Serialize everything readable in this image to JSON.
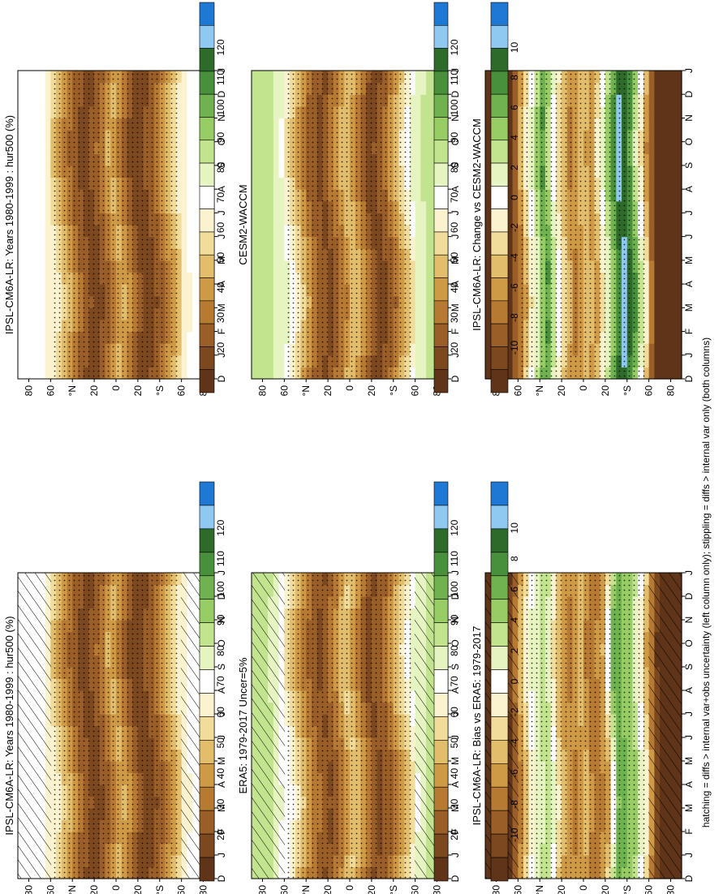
{
  "footer_note": "hatching = diffs > internal var+obs uncertainty (left column only); stippling = diffs > internal var only (both columns)",
  "colors": {
    "abs_scale": [
      "#1f78d4",
      "#8fc8f0",
      "#2e6b2b",
      "#49903d",
      "#6fb24f",
      "#98cc65",
      "#c3e48f",
      "#e6f4c2",
      "#ffffff",
      "#fbf3cf",
      "#f1dc9c",
      "#e2bd6c",
      "#cf9a45",
      "#b77a33",
      "#9a5f28",
      "#7c4820",
      "#5f3418"
    ],
    "diff_scale": [
      "#1f78d4",
      "#8fc8f0",
      "#2e6b2b",
      "#49903d",
      "#6fb24f",
      "#98cc65",
      "#c3e48f",
      "#e6f4c2",
      "#ffffff",
      "#fbf3cf",
      "#f1dc9c",
      "#e2bd6c",
      "#cf9a45",
      "#b77a33",
      "#9a5f28",
      "#7c4820",
      "#5f3418"
    ]
  },
  "chart_data": [
    {
      "id": "ipsl-bottom",
      "type": "heatmap",
      "title": "IPSL-CM6A-LR: Years 1980-1999 : hur500 (%)",
      "x_ticks": [
        "D",
        "J",
        "F",
        "M",
        "A",
        "M",
        "J",
        "J",
        "A",
        "S",
        "O",
        "N",
        "D",
        "J"
      ],
      "y_ticks": [
        "80",
        "60",
        "°N",
        "20",
        "0",
        "20",
        "°S",
        "60",
        "80"
      ],
      "ylim": [
        -90,
        90
      ],
      "colorbar": {
        "labels": [
          "120",
          "110",
          "100",
          "90",
          "80",
          "70",
          "60",
          "50",
          "40",
          "30",
          "20"
        ],
        "scale": "abs"
      },
      "latitude_profile": [
        {
          "lat": -90,
          "value": 70
        },
        {
          "lat": -75,
          "value": 70
        },
        {
          "lat": -62,
          "value": 65
        },
        {
          "lat": -50,
          "value": 48
        },
        {
          "lat": -35,
          "value": 30
        },
        {
          "lat": -22,
          "value": 22
        },
        {
          "lat": -8,
          "value": 40
        },
        {
          "lat": 0,
          "value": 50
        },
        {
          "lat": 8,
          "value": 38
        },
        {
          "lat": 22,
          "value": 24
        },
        {
          "lat": 35,
          "value": 32
        },
        {
          "lat": 50,
          "value": 50
        },
        {
          "lat": 62,
          "value": 66
        },
        {
          "lat": 75,
          "value": 70
        },
        {
          "lat": 90,
          "value": 70
        }
      ],
      "seasonal_amplitude": 6,
      "hatching": "both poles",
      "stippling": true
    },
    {
      "id": "ipsl-top",
      "type": "heatmap",
      "title": "IPSL-CM6A-LR: Years 1980-1999 : hur500 (%)",
      "x_ticks": [
        "D",
        "J",
        "F",
        "M",
        "A",
        "M",
        "J",
        "J",
        "A",
        "S",
        "O",
        "N",
        "D",
        "J"
      ],
      "y_ticks": [
        "80",
        "60",
        "°N",
        "20",
        "0",
        "20",
        "°S",
        "60",
        "80"
      ],
      "ylim": [
        -90,
        90
      ],
      "colorbar": {
        "labels": [
          "120",
          "110",
          "100",
          "90",
          "80",
          "70",
          "60",
          "50",
          "40",
          "30",
          "20"
        ],
        "scale": "abs"
      },
      "latitude_profile": [
        {
          "lat": -90,
          "value": 70
        },
        {
          "lat": -75,
          "value": 70
        },
        {
          "lat": -62,
          "value": 65
        },
        {
          "lat": -50,
          "value": 48
        },
        {
          "lat": -35,
          "value": 30
        },
        {
          "lat": -22,
          "value": 22
        },
        {
          "lat": -8,
          "value": 40
        },
        {
          "lat": 0,
          "value": 50
        },
        {
          "lat": 8,
          "value": 38
        },
        {
          "lat": 22,
          "value": 24
        },
        {
          "lat": 35,
          "value": 32
        },
        {
          "lat": 50,
          "value": 50
        },
        {
          "lat": 62,
          "value": 66
        },
        {
          "lat": 75,
          "value": 70
        },
        {
          "lat": 90,
          "value": 70
        }
      ],
      "seasonal_amplitude": 6,
      "hatching": "none",
      "stippling": true
    },
    {
      "id": "era5",
      "type": "heatmap",
      "title": "ERA5: 1979-2017 Uncer=5%",
      "x_ticks": [
        "D",
        "J",
        "F",
        "M",
        "A",
        "M",
        "J",
        "J",
        "A",
        "S",
        "O",
        "N",
        "D",
        "J"
      ],
      "y_ticks": [
        "80",
        "60",
        "°N",
        "20",
        "0",
        "20",
        "°S",
        "60",
        "80"
      ],
      "ylim": [
        -90,
        90
      ],
      "colorbar": {
        "labels": [
          "120",
          "110",
          "100",
          "90",
          "80",
          "70",
          "60",
          "50",
          "40",
          "30",
          "20"
        ],
        "scale": "abs"
      },
      "latitude_profile": [
        {
          "lat": -90,
          "value": 85
        },
        {
          "lat": -75,
          "value": 83
        },
        {
          "lat": -62,
          "value": 74
        },
        {
          "lat": -50,
          "value": 55
        },
        {
          "lat": -35,
          "value": 34
        },
        {
          "lat": -22,
          "value": 26
        },
        {
          "lat": -8,
          "value": 45
        },
        {
          "lat": 0,
          "value": 55
        },
        {
          "lat": 8,
          "value": 42
        },
        {
          "lat": 22,
          "value": 27
        },
        {
          "lat": 35,
          "value": 36
        },
        {
          "lat": 50,
          "value": 56
        },
        {
          "lat": 62,
          "value": 72
        },
        {
          "lat": 75,
          "value": 82
        },
        {
          "lat": 90,
          "value": 85
        }
      ],
      "seasonal_amplitude": 6,
      "hatching": "both poles",
      "stippling": true
    },
    {
      "id": "cesm2",
      "type": "heatmap",
      "title": "CESM2-WACCM",
      "x_ticks": [
        "D",
        "J",
        "F",
        "M",
        "A",
        "M",
        "J",
        "J",
        "A",
        "S",
        "O",
        "N",
        "D",
        "J"
      ],
      "y_ticks": [
        "80",
        "60",
        "°N",
        "20",
        "0",
        "20",
        "°S",
        "60",
        "80"
      ],
      "ylim": [
        -90,
        90
      ],
      "colorbar": {
        "labels": [
          "120",
          "110",
          "100",
          "90",
          "80",
          "70",
          "60",
          "50",
          "40",
          "30",
          "20"
        ],
        "scale": "abs"
      },
      "latitude_profile": [
        {
          "lat": -90,
          "value": 86
        },
        {
          "lat": -75,
          "value": 84
        },
        {
          "lat": -62,
          "value": 76
        },
        {
          "lat": -50,
          "value": 55
        },
        {
          "lat": -35,
          "value": 32
        },
        {
          "lat": -22,
          "value": 24
        },
        {
          "lat": -8,
          "value": 44
        },
        {
          "lat": 0,
          "value": 54
        },
        {
          "lat": 8,
          "value": 41
        },
        {
          "lat": 22,
          "value": 26
        },
        {
          "lat": 35,
          "value": 35
        },
        {
          "lat": 50,
          "value": 57
        },
        {
          "lat": 62,
          "value": 74
        },
        {
          "lat": 75,
          "value": 84
        },
        {
          "lat": 90,
          "value": 86
        }
      ],
      "seasonal_amplitude": 6,
      "hatching": "none",
      "stippling": true
    },
    {
      "id": "bias",
      "type": "heatmap",
      "title": "IPSL-CM6A-LR: Bias vs ERA5: 1979-2017",
      "x_ticks": [
        "D",
        "J",
        "F",
        "M",
        "A",
        "M",
        "J",
        "J",
        "A",
        "S",
        "O",
        "N",
        "D",
        "J"
      ],
      "y_ticks": [
        "80",
        "60",
        "°N",
        "20",
        "0",
        "20",
        "°S",
        "60",
        "80"
      ],
      "ylim": [
        -90,
        90
      ],
      "colorbar": {
        "labels": [
          "10",
          "8",
          "6",
          "4",
          "2",
          "0",
          "-2",
          "-4",
          "-6",
          "-8",
          "-10"
        ],
        "scale": "diff"
      },
      "latitude_profile": [
        {
          "lat": -90,
          "value": -12
        },
        {
          "lat": -70,
          "value": -11
        },
        {
          "lat": -58,
          "value": -3
        },
        {
          "lat": -45,
          "value": 4
        },
        {
          "lat": -30,
          "value": 5
        },
        {
          "lat": -20,
          "value": -5
        },
        {
          "lat": -8,
          "value": -7
        },
        {
          "lat": 0,
          "value": -4
        },
        {
          "lat": 10,
          "value": -6
        },
        {
          "lat": 22,
          "value": -4
        },
        {
          "lat": 33,
          "value": 3
        },
        {
          "lat": 45,
          "value": 1
        },
        {
          "lat": 58,
          "value": -5
        },
        {
          "lat": 70,
          "value": -11
        },
        {
          "lat": 90,
          "value": -12
        }
      ],
      "seasonal_amplitude": 3,
      "hatching": "both poles",
      "stippling": true
    },
    {
      "id": "change",
      "type": "heatmap",
      "title": "IPSL-CM6A-LR: Change vs CESM2-WACCM",
      "x_ticks": [
        "D",
        "J",
        "F",
        "M",
        "A",
        "M",
        "J",
        "J",
        "A",
        "S",
        "O",
        "N",
        "D",
        "J"
      ],
      "y_ticks": [
        "80",
        "60",
        "°N",
        "20",
        "0",
        "20",
        "°S",
        "60",
        "80"
      ],
      "ylim": [
        -90,
        90
      ],
      "colorbar": {
        "labels": [
          "10",
          "8",
          "6",
          "4",
          "2",
          "0",
          "-2",
          "-4",
          "-6",
          "-8",
          "-10"
        ],
        "scale": "diff"
      },
      "latitude_profile": [
        {
          "lat": -90,
          "value": -14
        },
        {
          "lat": -70,
          "value": -13
        },
        {
          "lat": -58,
          "value": -4
        },
        {
          "lat": -45,
          "value": 6
        },
        {
          "lat": -35,
          "value": 9
        },
        {
          "lat": -25,
          "value": 4
        },
        {
          "lat": -10,
          "value": -5
        },
        {
          "lat": 0,
          "value": -4
        },
        {
          "lat": 10,
          "value": -6
        },
        {
          "lat": 22,
          "value": -2
        },
        {
          "lat": 35,
          "value": 6
        },
        {
          "lat": 45,
          "value": 1
        },
        {
          "lat": 58,
          "value": -6
        },
        {
          "lat": 72,
          "value": -12
        },
        {
          "lat": 90,
          "value": -14
        }
      ],
      "seasonal_amplitude": 3,
      "hatching": "none",
      "stippling": true
    }
  ]
}
